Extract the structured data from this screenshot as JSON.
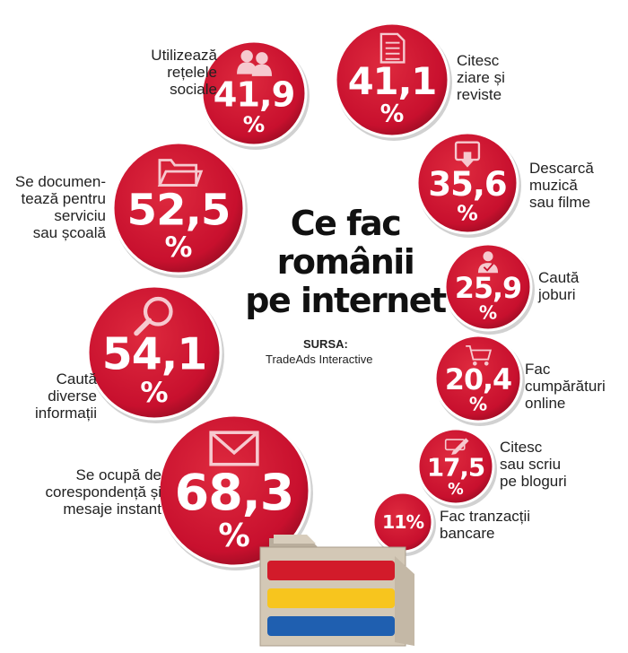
{
  "title": "Ce fac\nromânii\npe internet",
  "source": {
    "label": "SURSA:",
    "name": "TradeAds Interactive"
  },
  "colors": {
    "bubble": "#c8102e",
    "bubble_edge": "#7d0a1b",
    "flag_red": "#d21b2a",
    "flag_yellow": "#f7c51e",
    "flag_blue": "#1f5fb0",
    "folder": "#cbbfae"
  },
  "chart_data": {
    "type": "bubble",
    "unit": "%",
    "title": "Ce fac românii pe internet",
    "items": [
      {
        "label": "Utilizează\nrețelele\nsociale",
        "value": 41.9,
        "value_text": "41,9",
        "icon": "people-icon"
      },
      {
        "label": "Citesc\nziare și\nreviste",
        "value": 41.1,
        "value_text": "41,1",
        "icon": "document-icon"
      },
      {
        "label": "Se documen-\ntează pentru\nserviciu\nsau școală",
        "value": 52.5,
        "value_text": "52,5",
        "icon": "folder-icon"
      },
      {
        "label": "Descarcă\nmuzică\nsau filme",
        "value": 35.6,
        "value_text": "35,6",
        "icon": "download-icon"
      },
      {
        "label": "Caută\njoburi",
        "value": 25.9,
        "value_text": "25,9",
        "icon": "person-check-icon"
      },
      {
        "label": "Caută\ndiverse\ninformații",
        "value": 54.1,
        "value_text": "54,1",
        "icon": "magnifier-icon"
      },
      {
        "label": "Fac\ncumpărături\nonline",
        "value": 20.4,
        "value_text": "20,4",
        "icon": "cart-icon"
      },
      {
        "label": "Citesc\nsau scriu\npe bloguri",
        "value": 17.5,
        "value_text": "17,5",
        "icon": "pencil-icon"
      },
      {
        "label": "Se ocupă de\ncorespondență și\nmesaje instant",
        "value": 68.3,
        "value_text": "68,3",
        "icon": "envelope-icon"
      },
      {
        "label": "Fac tranzacții\nbancare",
        "value": 11,
        "value_text": "11%",
        "icon": ""
      }
    ]
  }
}
